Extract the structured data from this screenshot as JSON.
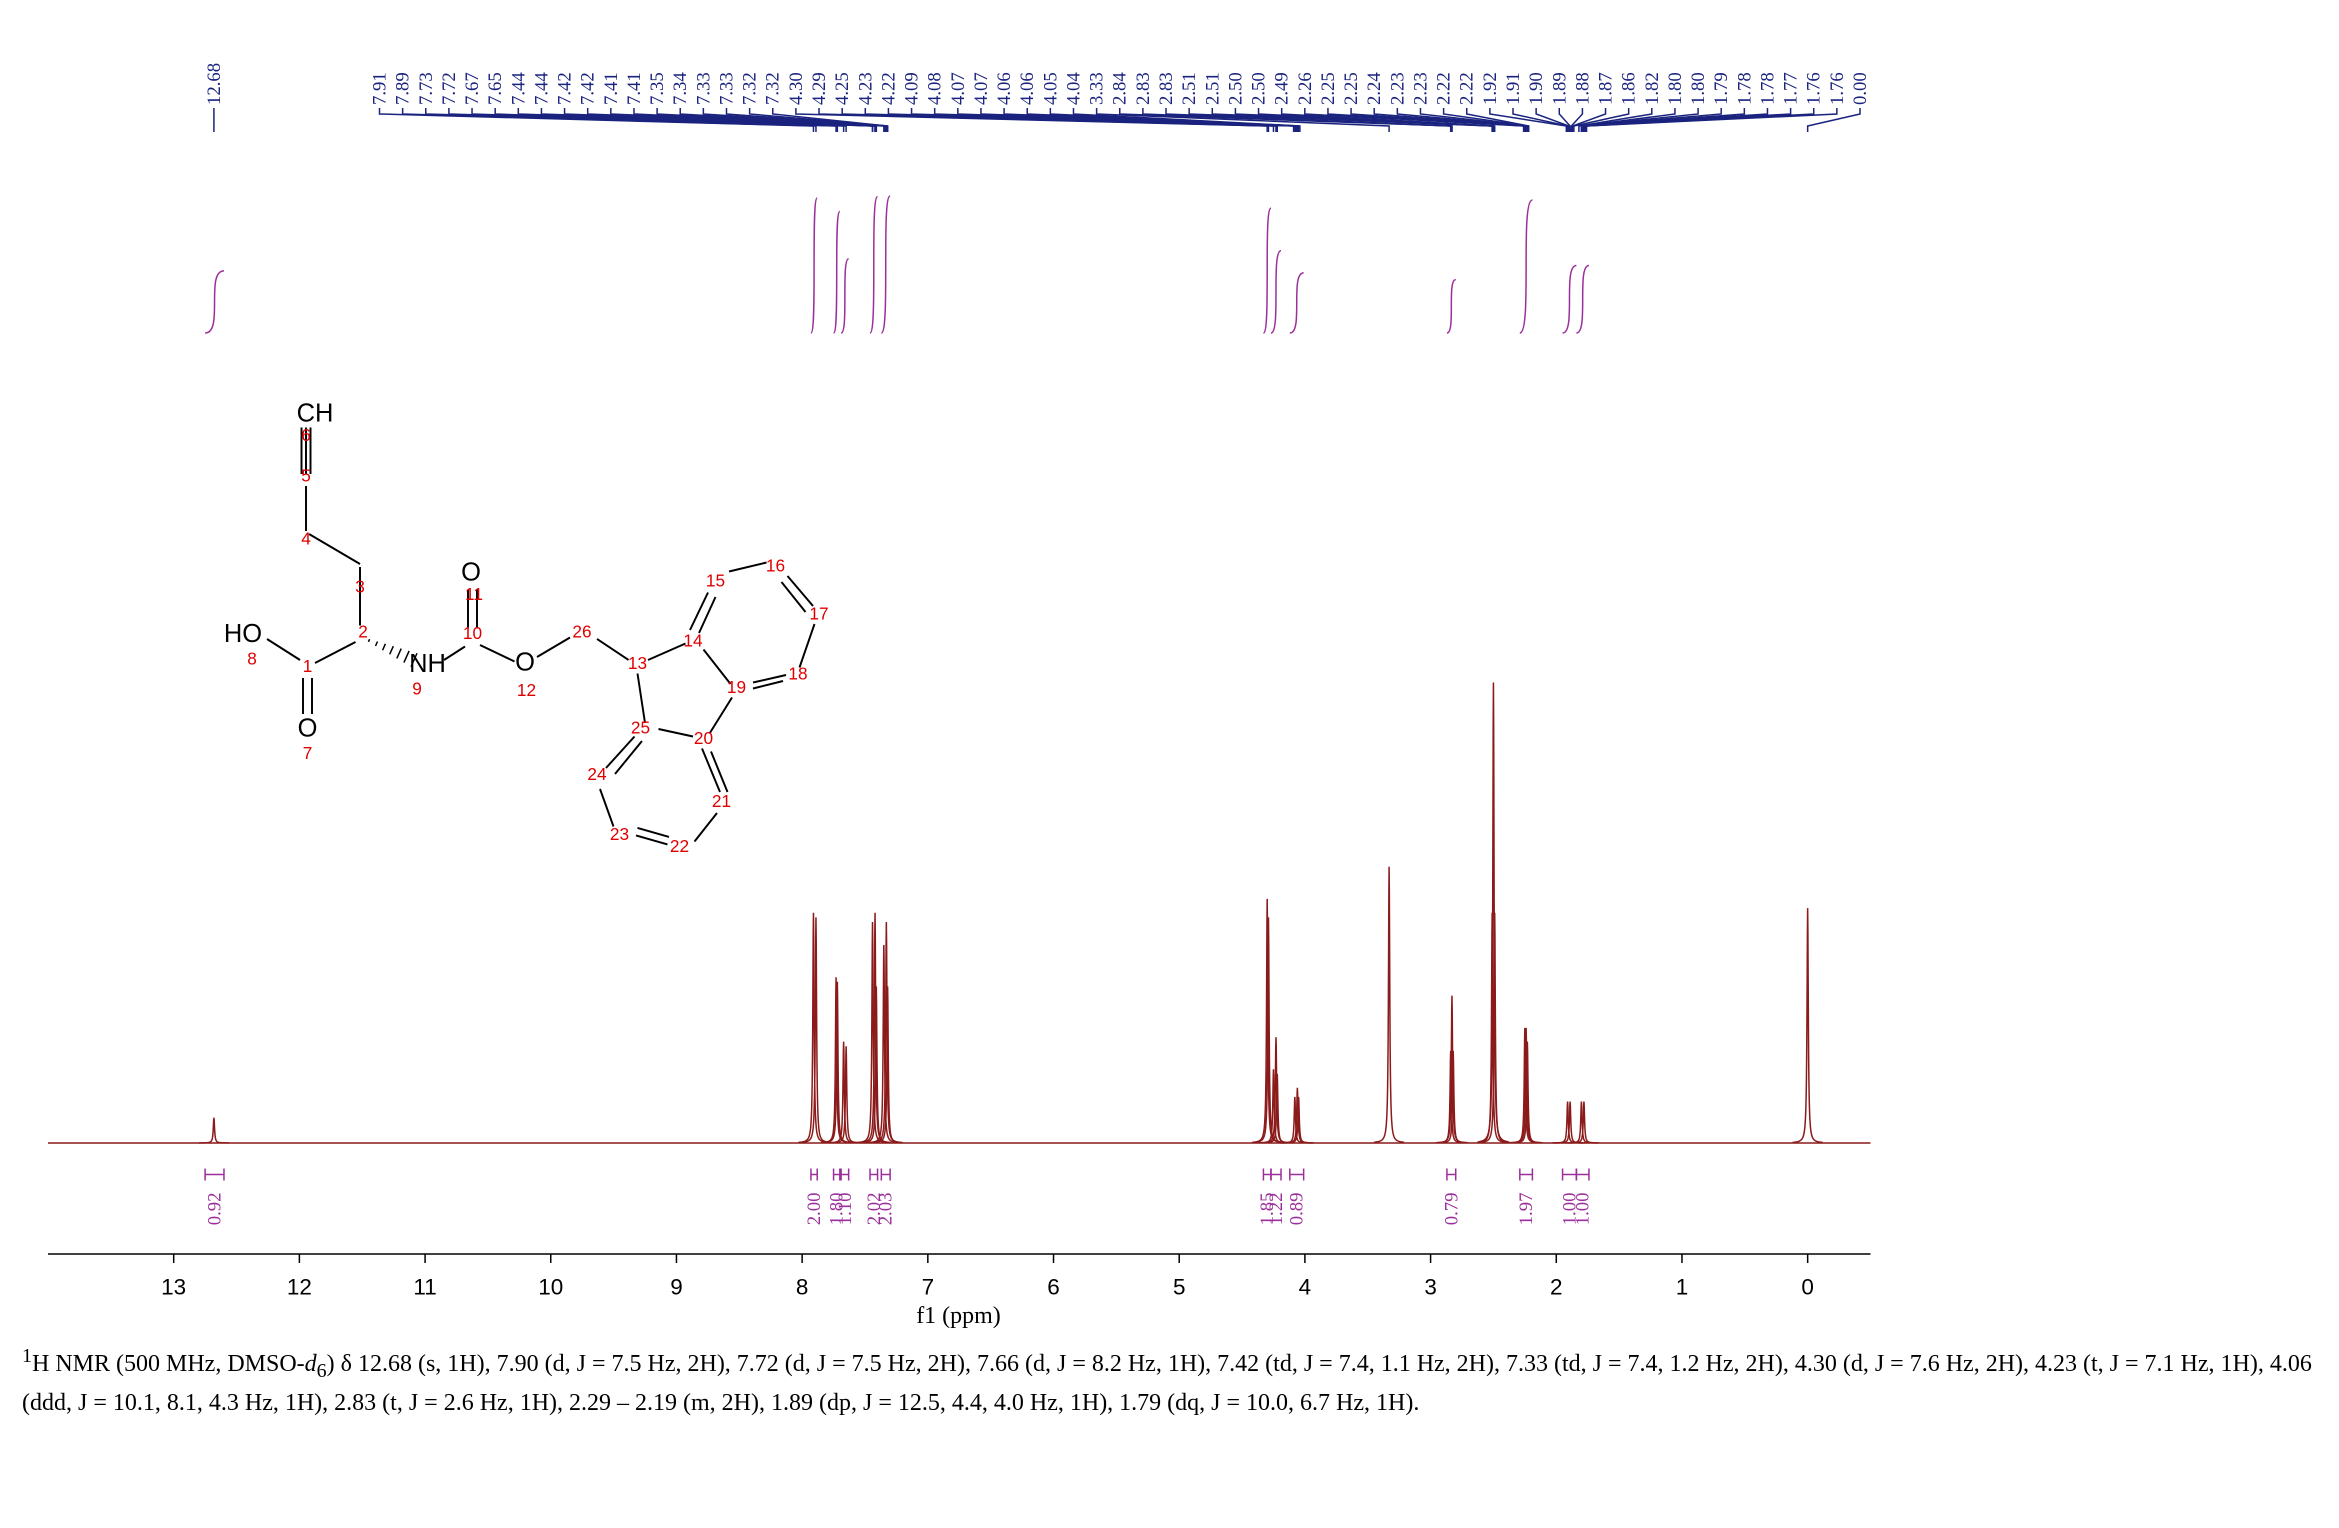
{
  "chart_data": {
    "type": "spectrum",
    "x_label": "f1 (ppm)",
    "xlim": [
      14.0,
      -0.5
    ],
    "xticks": [
      13,
      12,
      11,
      10,
      9,
      8,
      7,
      6,
      5,
      4,
      3,
      2,
      1,
      0
    ],
    "ylim": [
      0,
      100
    ],
    "color": "#8b1a1a",
    "x": [
      12.68,
      7.91,
      7.89,
      7.73,
      7.72,
      7.67,
      7.65,
      7.44,
      7.42,
      7.41,
      7.35,
      7.33,
      7.32,
      4.3,
      4.29,
      4.25,
      4.23,
      4.22,
      4.08,
      4.06,
      4.05,
      3.33,
      2.84,
      2.83,
      2.82,
      2.51,
      2.5,
      2.49,
      2.25,
      2.24,
      2.23,
      1.91,
      1.89,
      1.8,
      1.78,
      0.0
    ],
    "values": [
      5.5,
      50,
      49,
      36,
      35,
      22,
      21,
      48,
      50,
      34,
      43,
      48,
      34,
      53,
      49,
      16,
      23,
      15,
      10,
      12,
      10,
      60,
      20,
      32,
      20,
      50,
      100,
      50,
      25,
      25,
      22,
      9,
      9,
      9,
      9,
      51
    ],
    "peak_labels_color": "#1a237e",
    "peak_labels": [
      "12.68",
      "7.91",
      "7.89",
      "7.73",
      "7.72",
      "7.67",
      "7.65",
      "7.44",
      "7.44",
      "7.42",
      "7.42",
      "7.41",
      "7.41",
      "7.35",
      "7.34",
      "7.33",
      "7.33",
      "7.32",
      "7.32",
      "4.30",
      "4.29",
      "4.25",
      "4.23",
      "4.22",
      "4.09",
      "4.08",
      "4.07",
      "4.07",
      "4.06",
      "4.06",
      "4.05",
      "4.04",
      "3.33",
      "2.84",
      "2.83",
      "2.83",
      "2.51",
      "2.51",
      "2.50",
      "2.50",
      "2.49",
      "2.26",
      "2.25",
      "2.25",
      "2.24",
      "2.23",
      "2.23",
      "2.22",
      "2.22",
      "1.92",
      "1.91",
      "1.90",
      "1.89",
      "1.88",
      "1.87",
      "1.86",
      "1.82",
      "1.80",
      "1.80",
      "1.79",
      "1.78",
      "1.78",
      "1.77",
      "1.76",
      "1.76",
      "0.00"
    ],
    "integral_color": "#9b2f9b",
    "integrals": [
      {
        "range": [
          12.75,
          12.6
        ],
        "value": 0.92,
        "label": "0.92"
      },
      {
        "range": [
          7.93,
          7.88
        ],
        "value": 2,
        "label": "2.00"
      },
      {
        "range": [
          7.75,
          7.7
        ],
        "value": 1.8,
        "label": "1.80"
      },
      {
        "range": [
          7.69,
          7.63
        ],
        "value": 1.1,
        "label": "1.10"
      },
      {
        "range": [
          7.46,
          7.4
        ],
        "value": 2.02,
        "label": "2.02"
      },
      {
        "range": [
          7.37,
          7.3
        ],
        "value": 2.03,
        "label": "2.03"
      },
      {
        "range": [
          4.33,
          4.27
        ],
        "value": 1.85,
        "label": "1.85"
      },
      {
        "range": [
          4.27,
          4.19
        ],
        "value": 1.22,
        "label": "1.22"
      },
      {
        "range": [
          4.12,
          4.01
        ],
        "value": 0.89,
        "label": "0.89"
      },
      {
        "range": [
          2.87,
          2.8
        ],
        "value": 0.79,
        "label": "0.79"
      },
      {
        "range": [
          2.29,
          2.19
        ],
        "value": 1.97,
        "label": "1.97"
      },
      {
        "range": [
          1.95,
          1.84
        ],
        "value": 1,
        "label": "1.00"
      },
      {
        "range": [
          1.84,
          1.74
        ],
        "value": 1,
        "label": "1.00"
      }
    ]
  },
  "structure": {
    "atoms": [
      "CH",
      "6",
      "5",
      "4",
      "3",
      "O",
      "11",
      "15",
      "16",
      "17",
      "HO",
      "8",
      "2",
      "NH",
      "9",
      "10",
      "O",
      "12",
      "26",
      "13",
      "14",
      "19",
      "18",
      "1",
      "O",
      "7",
      "25",
      "20",
      "24",
      "21",
      "23",
      "22"
    ]
  },
  "description": [
    "1",
    "H NMR (500 MHz, DMSO-",
    "d",
    "6",
    ") δ 12.68 (s, 1H), 7.90 (d, J = 7.5 Hz, 2H), 7.72 (d, J = 7.5 Hz, 2H), 7.66 (d, J = 8.2 Hz, 1H), 7.42 (td, J = 7.4, 1.1 Hz, 2H), 7.33 (td, J = 7.4, 1.2 Hz, 2H), 4.30 (d, J = 7.6 Hz, 2H), 4.23 (t, J = 7.1 Hz, 1H), 4.06 (ddd, J = 10.1, 8.1, 4.3 Hz, 1H), 2.83 (t, J = 2.6 Hz, 1H), 2.29 – 2.19 (m, 2H), 1.89 (dp, J = 12.5, 4.4, 4.0 Hz, 1H), 1.79 (dq, J = 10.0, 6.7 Hz, 1H)."
  ]
}
